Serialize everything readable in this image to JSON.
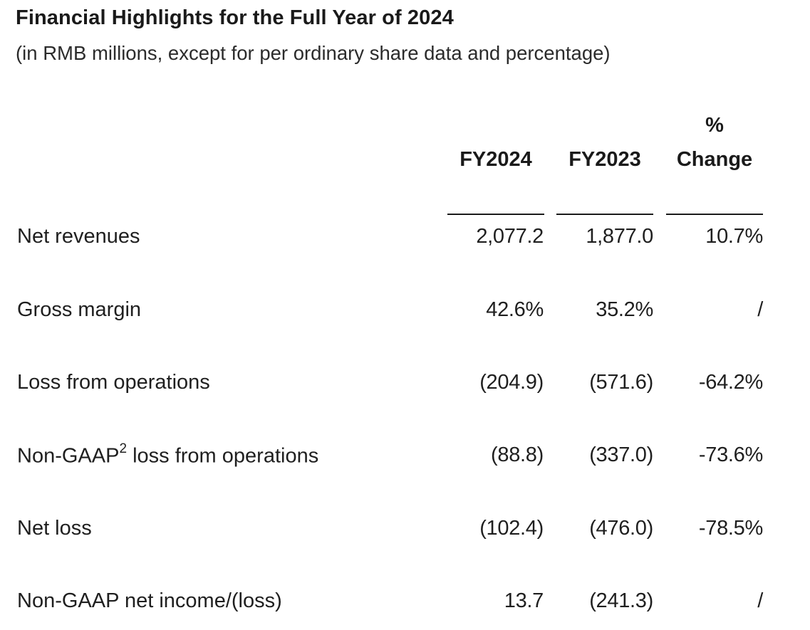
{
  "header": {
    "title": "Financial Highlights for the Full Year of 2024",
    "subtitle": "(in RMB millions, except for per ordinary share data and percentage)"
  },
  "table": {
    "columns": [
      "FY2024",
      "FY2023",
      "%",
      "Change"
    ],
    "rows": [
      {
        "label": "Net revenues",
        "footnote": "",
        "label_rest": "",
        "fy2024": "2,077.2",
        "fy2023": "1,877.0",
        "change": "10.7%"
      },
      {
        "label": "Gross margin",
        "footnote": "",
        "label_rest": "",
        "fy2024": "42.6%",
        "fy2023": "35.2%",
        "change": "/"
      },
      {
        "label": "Loss from operations",
        "footnote": "",
        "label_rest": "",
        "fy2024": "(204.9)",
        "fy2023": "(571.6)",
        "change": "-64.2%"
      },
      {
        "label": "Non-GAAP",
        "footnote": "2",
        "label_rest": " loss from operations",
        "fy2024": "(88.8)",
        "fy2023": "(337.0)",
        "change": "-73.6%"
      },
      {
        "label": "Net loss",
        "footnote": "",
        "label_rest": "",
        "fy2024": "(102.4)",
        "fy2023": "(476.0)",
        "change": "-78.5%"
      },
      {
        "label": "Non-GAAP net income/(loss)",
        "footnote": "",
        "label_rest": "",
        "fy2024": "13.7",
        "fy2023": "(241.3)",
        "change": "/"
      }
    ]
  }
}
